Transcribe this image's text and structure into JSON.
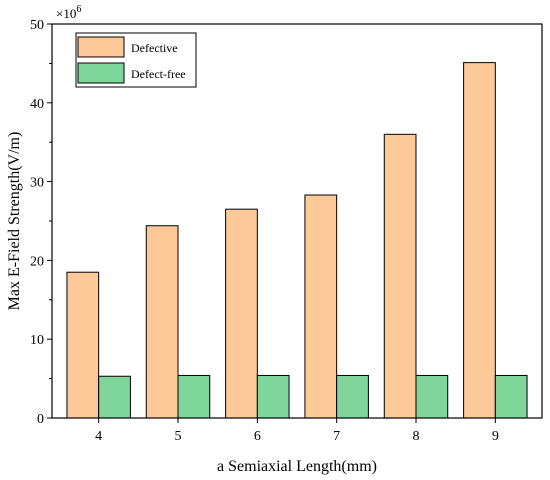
{
  "chart_data": {
    "type": "bar",
    "categories": [
      "4",
      "5",
      "6",
      "7",
      "8",
      "9"
    ],
    "series": [
      {
        "name": "Defective",
        "values": [
          18.5,
          24.4,
          26.5,
          28.3,
          36.0,
          45.1
        ],
        "color": "#fdc999"
      },
      {
        "name": "Defect-free",
        "values": [
          5.3,
          5.4,
          5.4,
          5.4,
          5.4,
          5.4
        ],
        "color": "#7fd69a"
      }
    ],
    "xlabel": "a Semiaxial Length(mm)",
    "ylabel": "Max E-Field Strength(V/m)",
    "ylim": [
      0,
      50
    ],
    "yticks": [
      0,
      10,
      20,
      30,
      40,
      50
    ],
    "y_multiplier": {
      "base": "×10",
      "exponent": "6"
    },
    "legend_position": "top-left",
    "grid": false
  }
}
